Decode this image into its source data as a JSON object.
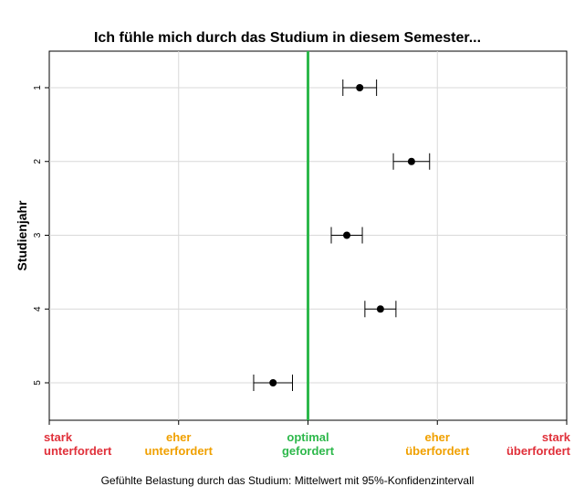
{
  "chart_data": {
    "type": "scatter",
    "title": "Ich fühle mich durch das Studium in diesem Semester...",
    "xlabel": "Gefühlte Belastung durch das Studium: Mittelwert mit 95%-Konfidenzintervall",
    "ylabel": "Studienjahr",
    "xlim": [
      -1,
      1
    ],
    "reference_line": {
      "x": 0,
      "color": "#2db84b"
    },
    "x_ticks": [
      {
        "value": -1,
        "line1": "stark",
        "line2": "unterfordert",
        "color": "#e0303a"
      },
      {
        "value": -0.5,
        "line1": "eher",
        "line2": "unterfordert",
        "color": "#f0a000"
      },
      {
        "value": 0,
        "line1": "optimal",
        "line2": "gefordert",
        "color": "#2db84b"
      },
      {
        "value": 0.5,
        "line1": "eher",
        "line2": "überfordert",
        "color": "#f0a000"
      },
      {
        "value": 1,
        "line1": "stark",
        "line2": "überfordert",
        "color": "#e0303a"
      }
    ],
    "categories": [
      "1",
      "2",
      "3",
      "4",
      "5"
    ],
    "points": [
      {
        "year": "1",
        "mean": 0.2,
        "ci_low": 0.135,
        "ci_high": 0.265
      },
      {
        "year": "2",
        "mean": 0.4,
        "ci_low": 0.33,
        "ci_high": 0.47
      },
      {
        "year": "3",
        "mean": 0.15,
        "ci_low": 0.09,
        "ci_high": 0.21
      },
      {
        "year": "4",
        "mean": 0.28,
        "ci_low": 0.22,
        "ci_high": 0.34
      },
      {
        "year": "5",
        "mean": -0.135,
        "ci_low": -0.21,
        "ci_high": -0.06
      }
    ],
    "grid": true
  }
}
